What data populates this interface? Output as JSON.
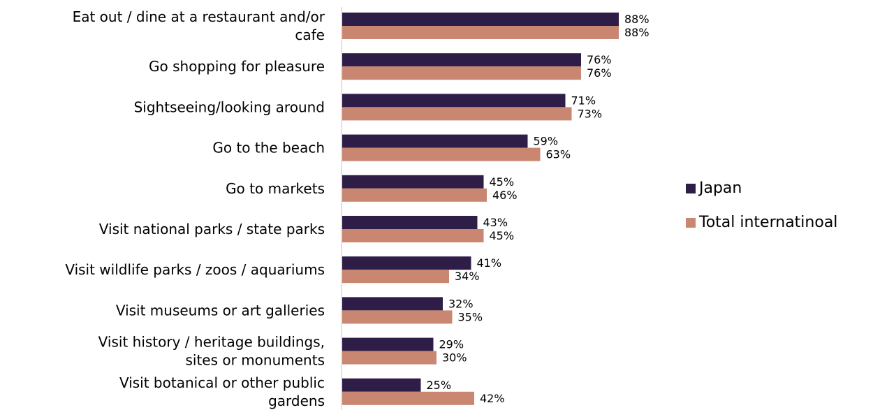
{
  "chart_data": {
    "type": "bar",
    "orientation": "horizontal",
    "categories": [
      "Eat out / dine at a restaurant and/or cafe",
      "Go shopping for pleasure",
      "Sightseeing/looking around",
      "Go to the beach",
      "Go to markets",
      "Visit national parks / state parks",
      "Visit wildlife parks / zoos / aquariums",
      "Visit museums or art galleries",
      "Visit history / heritage buildings, sites or monuments",
      "Visit botanical or other public gardens"
    ],
    "category_lines": [
      [
        "Eat out / dine at a restaurant and/or",
        "cafe"
      ],
      [
        "Go shopping for pleasure"
      ],
      [
        "Sightseeing/looking around"
      ],
      [
        "Go to the beach"
      ],
      [
        "Go to markets"
      ],
      [
        "Visit national parks / state parks"
      ],
      [
        "Visit wildlife parks / zoos / aquariums"
      ],
      [
        "Visit museums or art galleries"
      ],
      [
        "Visit history / heritage buildings,",
        "sites or monuments"
      ],
      [
        "Visit botanical or other public",
        "gardens"
      ]
    ],
    "series": [
      {
        "name": "Japan",
        "color": "#2e1d47",
        "values": [
          88,
          76,
          71,
          59,
          45,
          43,
          41,
          32,
          29,
          25
        ],
        "labels": [
          "88%",
          "76%",
          "71%",
          "59%",
          "45%",
          "43%",
          "41%",
          "32%",
          "29%",
          "25%"
        ]
      },
      {
        "name": "Total internatinoal",
        "color": "#c98671",
        "values": [
          88,
          76,
          73,
          63,
          46,
          45,
          34,
          35,
          30,
          42
        ],
        "labels": [
          "88%",
          "76%",
          "73%",
          "63%",
          "46%",
          "45%",
          "34%",
          "35%",
          "30%",
          "42%"
        ]
      }
    ],
    "xlim": [
      0,
      100
    ],
    "value_unit": "%",
    "grid": false,
    "legend_position": "right",
    "axis_color": "#d9d9d9"
  }
}
